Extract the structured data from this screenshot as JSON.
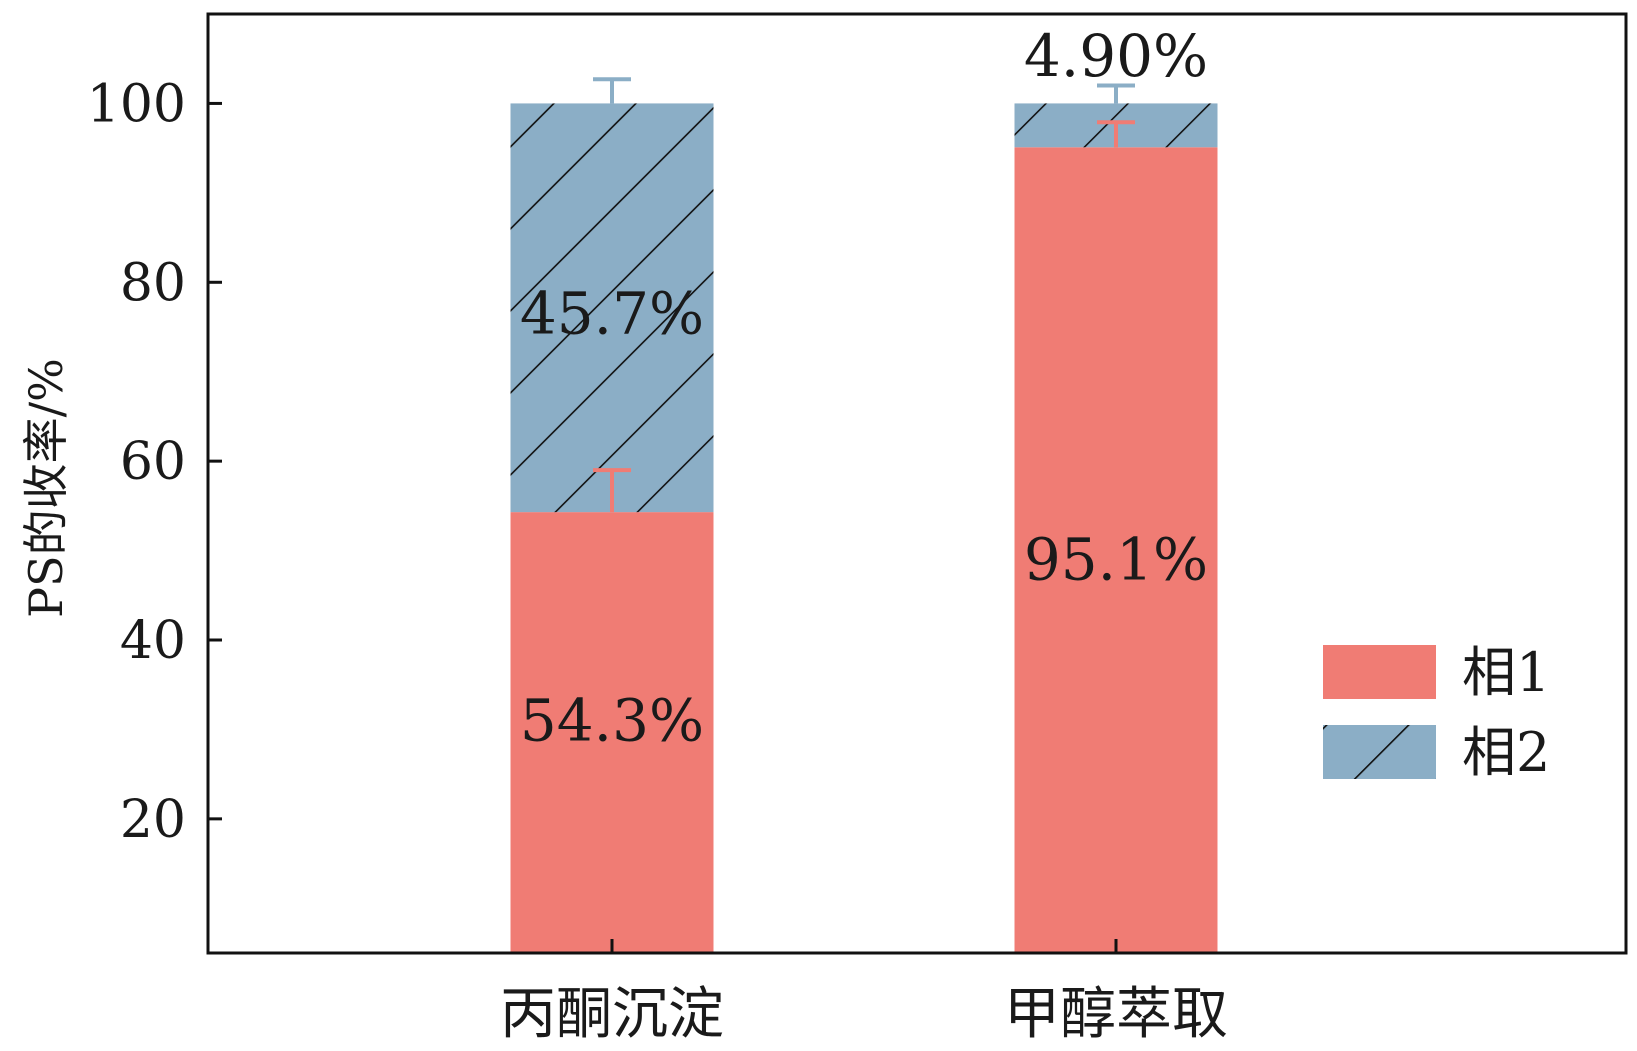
{
  "chart_data": {
    "type": "bar",
    "stacked": true,
    "title": "",
    "xlabel": "",
    "ylabel": "PS的收率/%",
    "ylim": [
      5,
      110
    ],
    "yticks": [
      20,
      40,
      60,
      80,
      100
    ],
    "categories": [
      "丙酮沉淀",
      "甲醇萃取"
    ],
    "series": [
      {
        "name": "相1",
        "values": [
          54.3,
          95.1
        ],
        "labels": [
          "54.3%",
          "95.1%"
        ],
        "errors": [
          4.7,
          2.8
        ],
        "color": "#F07C74",
        "hatch": false
      },
      {
        "name": "相2",
        "values": [
          45.7,
          4.9
        ],
        "labels": [
          "45.7%",
          "4.90%"
        ],
        "errors": [
          2.7,
          2.0
        ],
        "color": "#8BAEC6",
        "hatch": true
      }
    ],
    "grid": false,
    "legend": "bottom-right"
  }
}
